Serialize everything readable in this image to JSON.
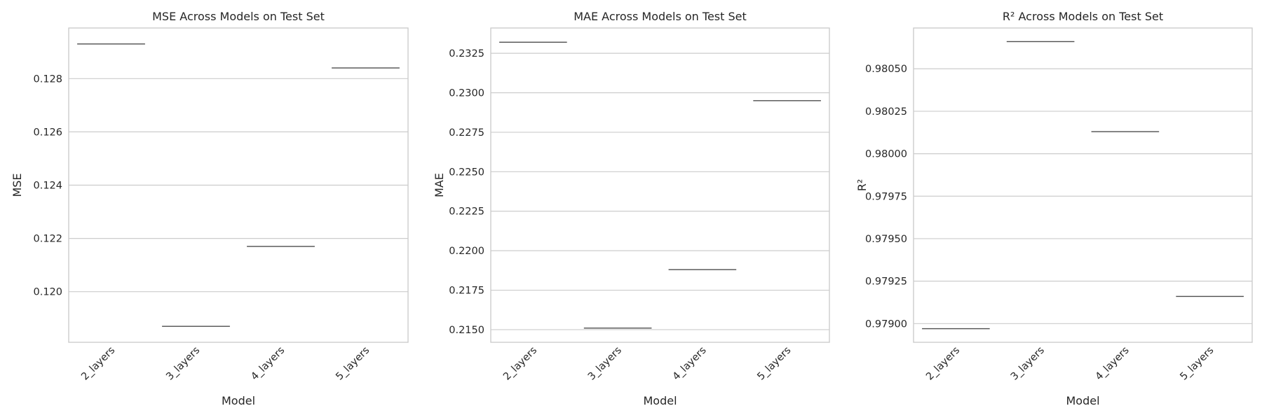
{
  "chart_data": [
    {
      "type": "box",
      "title": "MSE Across Models on Test Set",
      "xlabel": "Model",
      "ylabel": "MSE",
      "categories": [
        "2_layers",
        "3_layers",
        "4_layers",
        "5_layers"
      ],
      "values": [
        0.1293,
        0.1187,
        0.1217,
        0.1284
      ],
      "ylim": [
        0.1181,
        0.1299
      ],
      "yticks": [
        0.12,
        0.122,
        0.124,
        0.126,
        0.128
      ],
      "ytick_labels": [
        "0.120",
        "0.122",
        "0.124",
        "0.126",
        "0.128"
      ],
      "grid": "y",
      "box_color": "#4d4d4d"
    },
    {
      "type": "box",
      "title": "MAE Across Models on Test Set",
      "xlabel": "Model",
      "ylabel": "MAE",
      "categories": [
        "2_layers",
        "3_layers",
        "4_layers",
        "5_layers"
      ],
      "values": [
        0.2332,
        0.2151,
        0.2188,
        0.2295
      ],
      "ylim": [
        0.2142,
        0.2341
      ],
      "yticks": [
        0.215,
        0.2175,
        0.22,
        0.2225,
        0.225,
        0.2275,
        0.23,
        0.2325
      ],
      "ytick_labels": [
        "0.2150",
        "0.2175",
        "0.2200",
        "0.2225",
        "0.2250",
        "0.2275",
        "0.2300",
        "0.2325"
      ],
      "grid": "y",
      "box_color": "#4d4d4d"
    },
    {
      "type": "box",
      "title": "R² Across Models on Test Set",
      "xlabel": "Model",
      "ylabel": "R²",
      "categories": [
        "2_layers",
        "3_layers",
        "4_layers",
        "5_layers"
      ],
      "values": [
        0.97897,
        0.98066,
        0.98013,
        0.97916
      ],
      "ylim": [
        0.97889,
        0.98074
      ],
      "yticks": [
        0.979,
        0.97925,
        0.9795,
        0.97975,
        0.98,
        0.98025,
        0.9805
      ],
      "ytick_labels": [
        "0.97900",
        "0.97925",
        "0.97950",
        "0.97975",
        "0.98000",
        "0.98025",
        "0.98050"
      ],
      "grid": "y",
      "box_color": "#4d4d4d"
    }
  ]
}
